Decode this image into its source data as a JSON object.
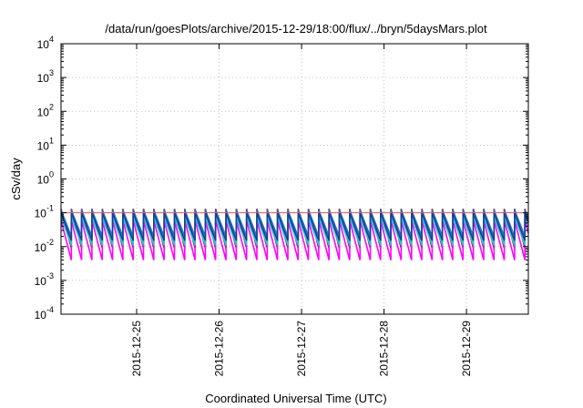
{
  "chart_data": {
    "type": "line",
    "title": "/data/run/goesPlots/archive/2015-12-29/18:00/flux/../bryn/5daysMars.plot",
    "xlabel": "Coordinated Universal Time (UTC)",
    "ylabel": "cSv/day",
    "yscale": "log",
    "ylim": [
      0.0001,
      10000
    ],
    "xlim": [
      "2015-12-24 02:00",
      "2015-12-29 18:00"
    ],
    "x_ticks": [
      "2015-12-25",
      "2015-12-26",
      "2015-12-27",
      "2015-12-28",
      "2015-12-29"
    ],
    "y_ticks": [
      {
        "value": 0.0001,
        "base": "10",
        "exp": "-4"
      },
      {
        "value": 0.001,
        "base": "10",
        "exp": "-3"
      },
      {
        "value": 0.01,
        "base": "10",
        "exp": "-2"
      },
      {
        "value": 0.1,
        "base": "10",
        "exp": "-1"
      },
      {
        "value": 1,
        "base": "10",
        "exp": "0"
      },
      {
        "value": 10,
        "base": "10",
        "exp": "1"
      },
      {
        "value": 100,
        "base": "10",
        "exp": "2"
      },
      {
        "value": 1000,
        "base": "10",
        "exp": "3"
      },
      {
        "value": 10000,
        "base": "10",
        "exp": "4"
      }
    ],
    "grid": true,
    "reference_line": {
      "value": 0.1,
      "color": "#e0584a"
    },
    "pattern": {
      "period_hours": 3,
      "start": "2015-12-24 02:00",
      "end": "2015-12-29 18:00"
    },
    "series": [
      {
        "color": "#8b1a1a",
        "peak": 0.13,
        "trough": 0.009
      },
      {
        "color": "#ff00ff",
        "peak": 0.06,
        "trough": 0.004
      },
      {
        "color": "#2a6fd0",
        "peak": 0.12,
        "trough": 0.02
      },
      {
        "color": "#20c8d8",
        "peak": 0.075,
        "trough": 0.011
      },
      {
        "color": "#1a3f8f",
        "peak": 0.1,
        "trough": 0.015
      }
    ]
  }
}
